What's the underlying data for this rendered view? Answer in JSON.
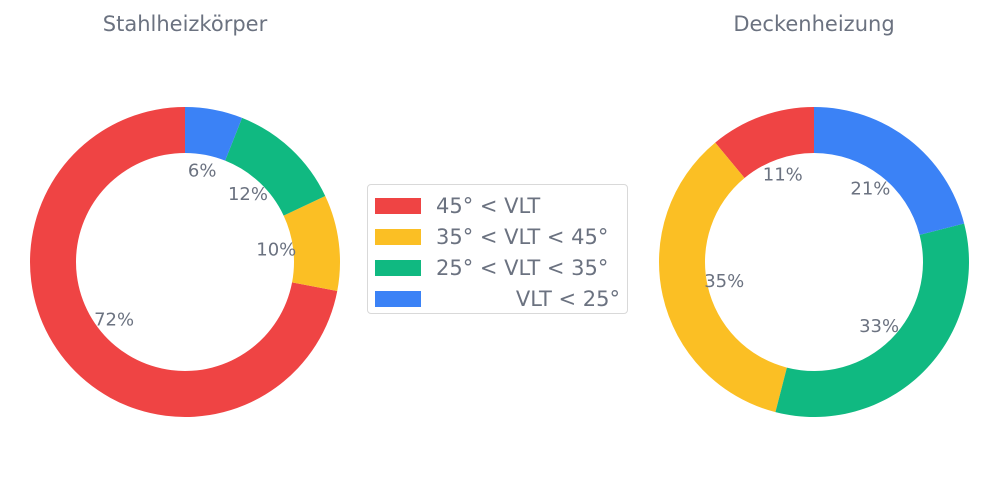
{
  "chart_data": [
    {
      "type": "pie",
      "title": "Stahlheizkörper",
      "categories": [
        "45° < VLT",
        "35° < VLT < 45°",
        "25° < VLT < 35°",
        "VLT < 25°"
      ],
      "values": [
        72,
        10,
        12,
        6
      ],
      "labels": [
        "72%",
        "10%",
        "12%",
        "6%"
      ],
      "colors": [
        "#ef4444",
        "#fbbf24",
        "#10b981",
        "#3b82f6"
      ],
      "donut": true,
      "legend": "center"
    },
    {
      "type": "pie",
      "title": "Deckenheizung",
      "categories": [
        "45° < VLT",
        "35° < VLT < 45°",
        "25° < VLT < 35°",
        "VLT < 25°"
      ],
      "values": [
        11,
        35,
        33,
        21
      ],
      "labels": [
        "11%",
        "35%",
        "33%",
        "21%"
      ],
      "colors": [
        "#ef4444",
        "#fbbf24",
        "#10b981",
        "#3b82f6"
      ],
      "donut": true,
      "legend": "center"
    }
  ],
  "legend": {
    "items": [
      {
        "label": "45° < VLT",
        "color": "#ef4444"
      },
      {
        "label": "35° < VLT < 45°",
        "color": "#fbbf24"
      },
      {
        "label": "25° < VLT < 35°",
        "color": "#10b981"
      },
      {
        "label": "VLT < 25°",
        "color": "#3b82f6"
      }
    ]
  }
}
